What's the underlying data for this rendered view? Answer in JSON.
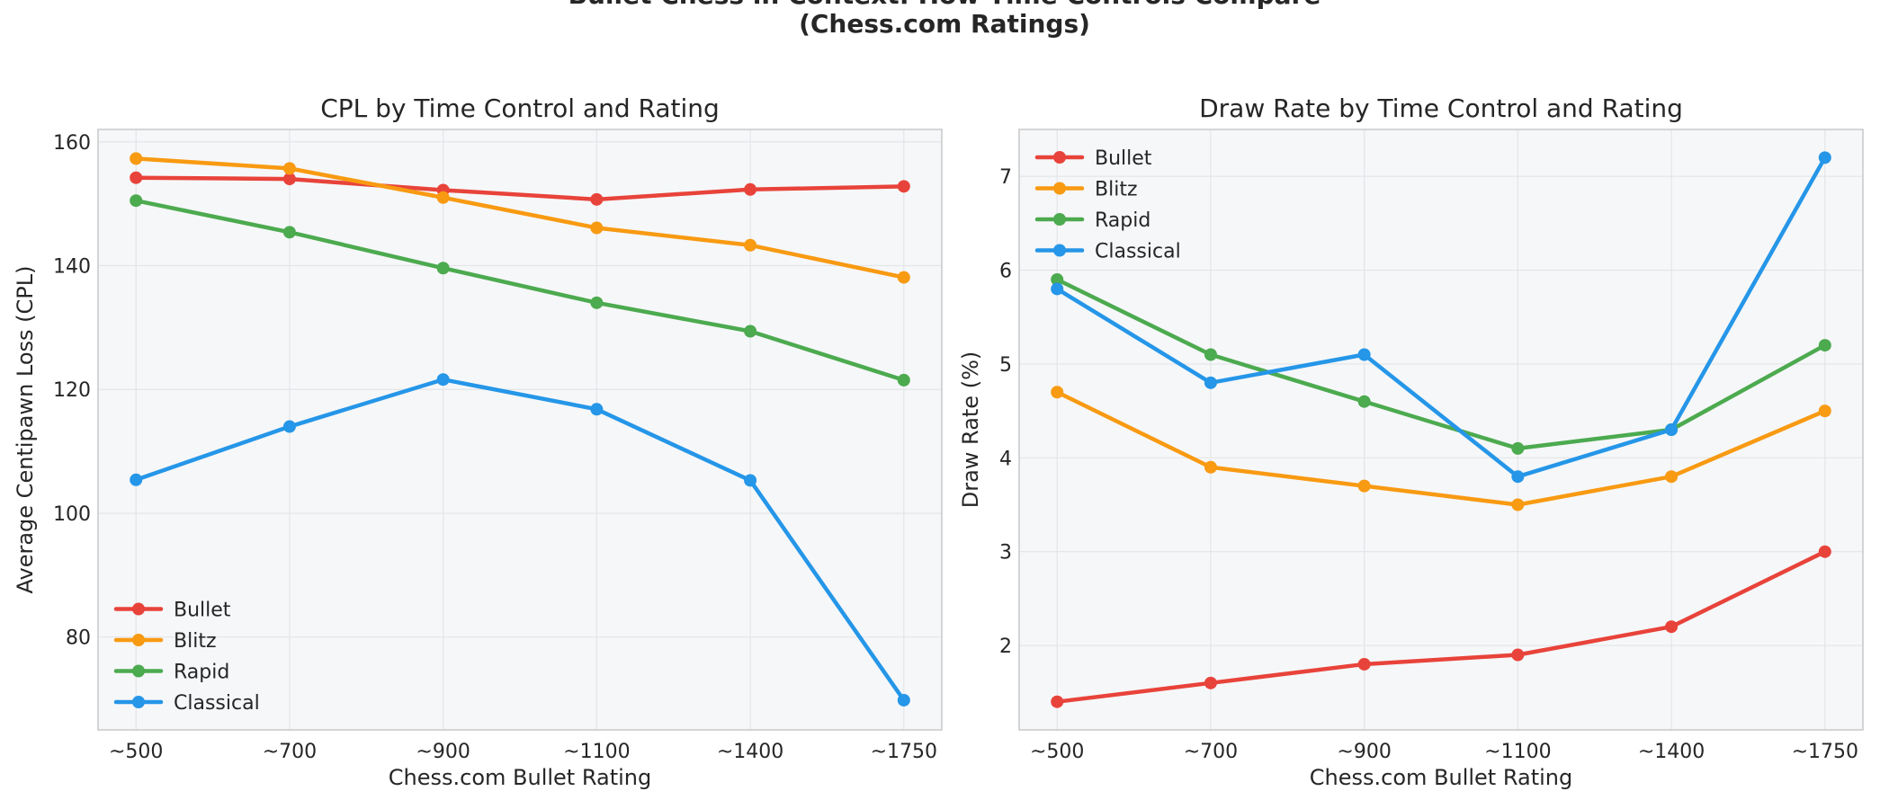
{
  "figure": {
    "title_line1": "Bullet Chess in Context: How Time Controls Compare",
    "title_line2": "(Chess.com Ratings)"
  },
  "chart_data": [
    {
      "type": "line",
      "title": "CPL by Time Control and Rating",
      "xlabel": "Chess.com Bullet Rating",
      "ylabel": "Average Centipawn Loss (CPL)",
      "categories": [
        "~500",
        "~700",
        "~900",
        "~1100",
        "~1400",
        "~1750"
      ],
      "ylim": [
        65,
        162
      ],
      "yticks": [
        80,
        100,
        120,
        140,
        160
      ],
      "grid": true,
      "legend_position": "lower-left",
      "series": [
        {
          "name": "Bullet",
          "color": "#e8433a",
          "values": [
            154.2,
            154.0,
            152.2,
            150.7,
            152.3,
            152.8
          ]
        },
        {
          "name": "Blitz",
          "color": "#f89a12",
          "values": [
            157.3,
            155.7,
            151.0,
            146.1,
            143.3,
            138.1
          ]
        },
        {
          "name": "Rapid",
          "color": "#4caa4f",
          "values": [
            150.5,
            145.4,
            139.6,
            134.0,
            129.4,
            121.5
          ]
        },
        {
          "name": "Classical",
          "color": "#2596e8",
          "values": [
            105.4,
            114.0,
            121.6,
            116.8,
            105.3,
            69.8
          ]
        }
      ]
    },
    {
      "type": "line",
      "title": "Draw Rate by Time Control and Rating",
      "xlabel": "Chess.com Bullet Rating",
      "ylabel": "Draw Rate (%)",
      "categories": [
        "~500",
        "~700",
        "~900",
        "~1100",
        "~1400",
        "~1750"
      ],
      "ylim": [
        1.1,
        7.5
      ],
      "yticks": [
        2,
        3,
        4,
        5,
        6,
        7
      ],
      "grid": true,
      "legend_position": "upper-left",
      "series": [
        {
          "name": "Bullet",
          "color": "#e8433a",
          "values": [
            1.4,
            1.6,
            1.8,
            1.9,
            2.2,
            3.0
          ]
        },
        {
          "name": "Blitz",
          "color": "#f89a12",
          "values": [
            4.7,
            3.9,
            3.7,
            3.5,
            3.8,
            4.5
          ]
        },
        {
          "name": "Rapid",
          "color": "#4caa4f",
          "values": [
            5.9,
            5.1,
            4.6,
            4.1,
            4.3,
            5.2
          ]
        },
        {
          "name": "Classical",
          "color": "#2596e8",
          "values": [
            5.8,
            4.8,
            5.1,
            3.8,
            4.3,
            7.2
          ]
        }
      ]
    }
  ]
}
